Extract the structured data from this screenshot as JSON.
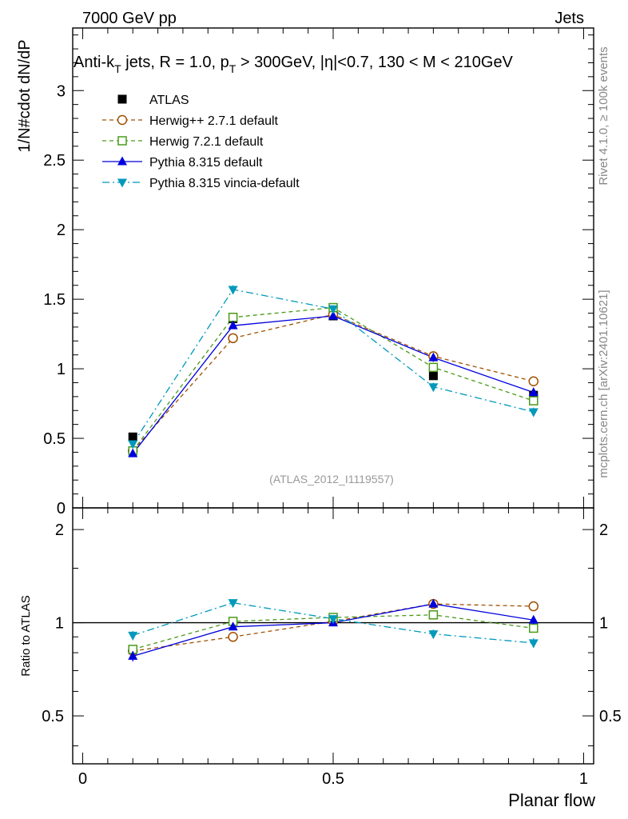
{
  "header": {
    "left": "7000 GeV pp",
    "right": "Jets"
  },
  "side_labels": {
    "rivet": "Rivet 4.1.0, ≥ 100k events",
    "mcplots": "mcplots.cern.ch [arXiv:2401.10621]"
  },
  "chart_data": {
    "type": "line",
    "title": "Anti-kT jets, R = 1.0, pT > 300GeV, |η|<0.7, 130 < M < 210GeV",
    "title_parts": {
      "p1": "Anti-k",
      "sub1": "T",
      "p2": " jets, R = 1.0, p",
      "sub2": "T",
      "p3": " > 300GeV, |η|<0.7, 130 < M < 210GeV"
    },
    "analysis_tag": "(ATLAS_2012_I1119557)",
    "xlabel": "Planar flow",
    "ylabel": "1/N#cdot dN/dP",
    "ratio_ylabel": "Ratio to ATLAS",
    "xlim": [
      -0.02,
      1.02
    ],
    "ylim": [
      0,
      3.45
    ],
    "ratio_ylim": [
      0.35,
      2.35
    ],
    "x_ticks": [
      {
        "value": 0,
        "label": "0"
      },
      {
        "value": 0.5,
        "label": "0.5"
      },
      {
        "value": 1,
        "label": "1"
      }
    ],
    "y_ticks": [
      {
        "value": 0,
        "label": "0"
      },
      {
        "value": 0.5,
        "label": "0.5"
      },
      {
        "value": 1,
        "label": "1"
      },
      {
        "value": 1.5,
        "label": "1.5"
      },
      {
        "value": 2,
        "label": "2"
      },
      {
        "value": 2.5,
        "label": "2.5"
      },
      {
        "value": 3,
        "label": "3"
      }
    ],
    "ratio_ticks": [
      {
        "value": 0.5,
        "label": "0.5"
      },
      {
        "value": 1,
        "label": "1"
      },
      {
        "value": 2,
        "label": "2"
      }
    ],
    "x": [
      0.1,
      0.3,
      0.5,
      0.7,
      0.9
    ],
    "series": [
      {
        "name": "ATLAS",
        "color": "#000000",
        "marker": "square-filled",
        "line": "none",
        "values": [
          0.51,
          1.36,
          1.38,
          0.95,
          0.81
        ],
        "errors": [
          0.01,
          0.02,
          0.02,
          0.02,
          0.02
        ]
      },
      {
        "name": "Herwig++ 2.7.1 default",
        "color": "#a05000",
        "marker": "circle-open",
        "line": "dashed",
        "values": [
          0.41,
          1.22,
          1.39,
          1.09,
          0.91
        ],
        "errors": [
          0.01,
          0.02,
          0.02,
          0.03,
          0.03
        ],
        "ratio": [
          0.81,
          0.9,
          1.01,
          1.15,
          1.13
        ],
        "ratio_errors": [
          0.02,
          0.02,
          0.02,
          0.03,
          0.03
        ]
      },
      {
        "name": "Herwig 7.2.1 default",
        "color": "#4a9a1a",
        "marker": "square-open",
        "line": "dashed",
        "values": [
          0.41,
          1.37,
          1.44,
          1.01,
          0.77
        ],
        "errors": [
          0.01,
          0.02,
          0.02,
          0.03,
          0.03
        ],
        "ratio": [
          0.82,
          1.01,
          1.04,
          1.06,
          0.96
        ],
        "ratio_errors": [
          0.02,
          0.02,
          0.02,
          0.03,
          0.03
        ]
      },
      {
        "name": "Pythia 8.315 default",
        "color": "#0000dd",
        "marker": "triangle-up",
        "line": "solid",
        "values": [
          0.39,
          1.31,
          1.38,
          1.08,
          0.83
        ],
        "errors": [
          0.01,
          0.02,
          0.02,
          0.03,
          0.03
        ],
        "ratio": [
          0.78,
          0.97,
          1.0,
          1.15,
          1.02
        ],
        "ratio_errors": [
          0.03,
          0.02,
          0.02,
          0.03,
          0.03
        ]
      },
      {
        "name": "Pythia 8.315 vincia-default",
        "color": "#0099bb",
        "marker": "triangle-down",
        "line": "dashdot",
        "values": [
          0.46,
          1.57,
          1.43,
          0.87,
          0.69
        ],
        "errors": [
          0.01,
          0.03,
          0.02,
          0.03,
          0.03
        ],
        "ratio": [
          0.91,
          1.16,
          1.03,
          0.92,
          0.86
        ],
        "ratio_errors": [
          0.03,
          0.02,
          0.02,
          0.03,
          0.03
        ]
      }
    ]
  }
}
